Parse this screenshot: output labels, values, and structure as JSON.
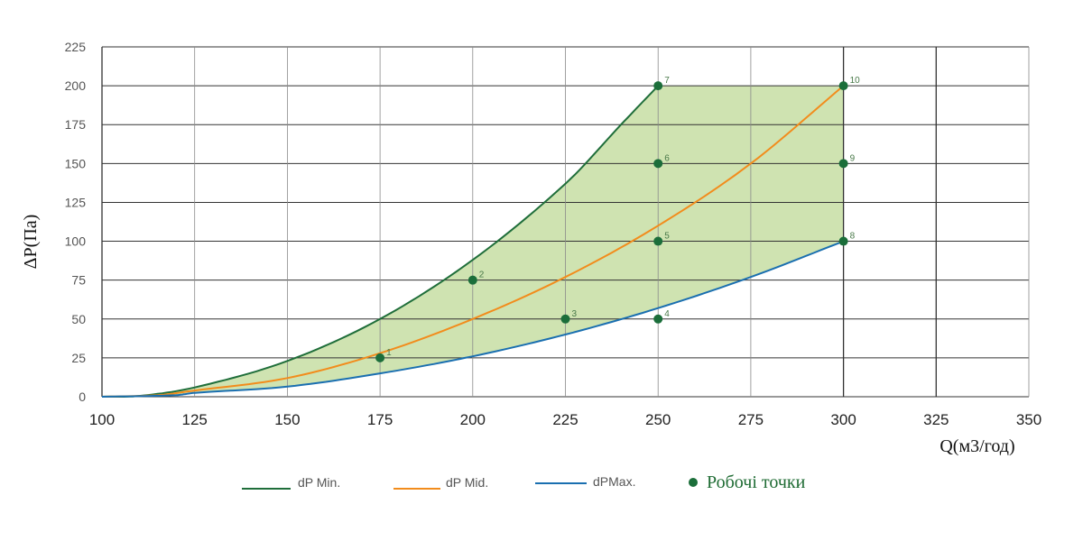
{
  "chart_data": {
    "type": "line",
    "xlabel": "Q(м3/год)",
    "ylabel": "ΔP(Па)",
    "xlim": [
      100,
      350
    ],
    "ylim": [
      0,
      225
    ],
    "xticks": [
      "100",
      "125",
      "150",
      "175",
      "200",
      "225",
      "250",
      "275",
      "300",
      "325",
      "350"
    ],
    "yticks": [
      "0",
      "25",
      "50",
      "75",
      "100",
      "125",
      "150",
      "175",
      "200",
      "225"
    ],
    "grid": true,
    "legend_position": "bottom",
    "series": [
      {
        "name": "dP Min.",
        "color": "#1f6e3a",
        "x": [
          100,
          110,
          125,
          150,
          175,
          200,
          225,
          240,
          250
        ],
        "y": [
          0,
          0.5,
          6,
          23,
          50,
          88,
          137,
          175,
          200
        ]
      },
      {
        "name": "dP Mid.",
        "color": "#f28c1c",
        "x": [
          100,
          115,
          125,
          150,
          175,
          200,
          225,
          250,
          275,
          300
        ],
        "y": [
          0,
          1,
          4,
          12,
          28,
          50,
          77,
          110,
          150,
          200
        ]
      },
      {
        "name": "dPMax.",
        "color": "#1a6fb0",
        "x": [
          100,
          120,
          125,
          150,
          175,
          200,
          225,
          250,
          275,
          300
        ],
        "y": [
          0,
          1,
          2.5,
          6.5,
          15,
          26,
          40,
          57,
          77,
          100
        ]
      }
    ],
    "points_legend": "Робочі точки",
    "points_color": "#1b6e3a",
    "points": [
      {
        "label": "1",
        "x": 175,
        "y": 25
      },
      {
        "label": "2",
        "x": 200,
        "y": 75
      },
      {
        "label": "3",
        "x": 225,
        "y": 50
      },
      {
        "label": "4",
        "x": 250,
        "y": 50
      },
      {
        "label": "5",
        "x": 250,
        "y": 100
      },
      {
        "label": "6",
        "x": 250,
        "y": 150
      },
      {
        "label": "7",
        "x": 250,
        "y": 200
      },
      {
        "label": "8",
        "x": 300,
        "y": 100
      },
      {
        "label": "9",
        "x": 300,
        "y": 150
      },
      {
        "label": "10",
        "x": 300,
        "y": 200
      }
    ],
    "fill_color": "#cfe3b1"
  }
}
